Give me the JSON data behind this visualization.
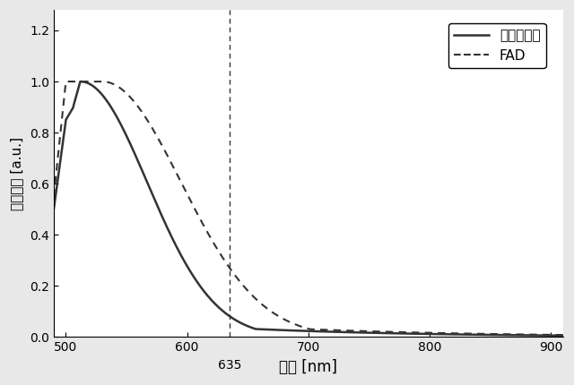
{
  "xlabel": "波長 [nm]",
  "ylabel": "蛍光強度 [a.u.]",
  "xlim": [
    490,
    910
  ],
  "ylim": [
    0,
    1.28
  ],
  "yticks": [
    0,
    0.2,
    0.4,
    0.6,
    0.8,
    1.0,
    1.2
  ],
  "xticks": [
    500,
    600,
    700,
    800,
    900
  ],
  "vline_x": 635,
  "vline_label": "635",
  "legend_labels": [
    "コラーゲン",
    "FAD"
  ],
  "line_color": "#333333",
  "background_color": "#f0f0f0",
  "plot_bg": "#ffffff"
}
